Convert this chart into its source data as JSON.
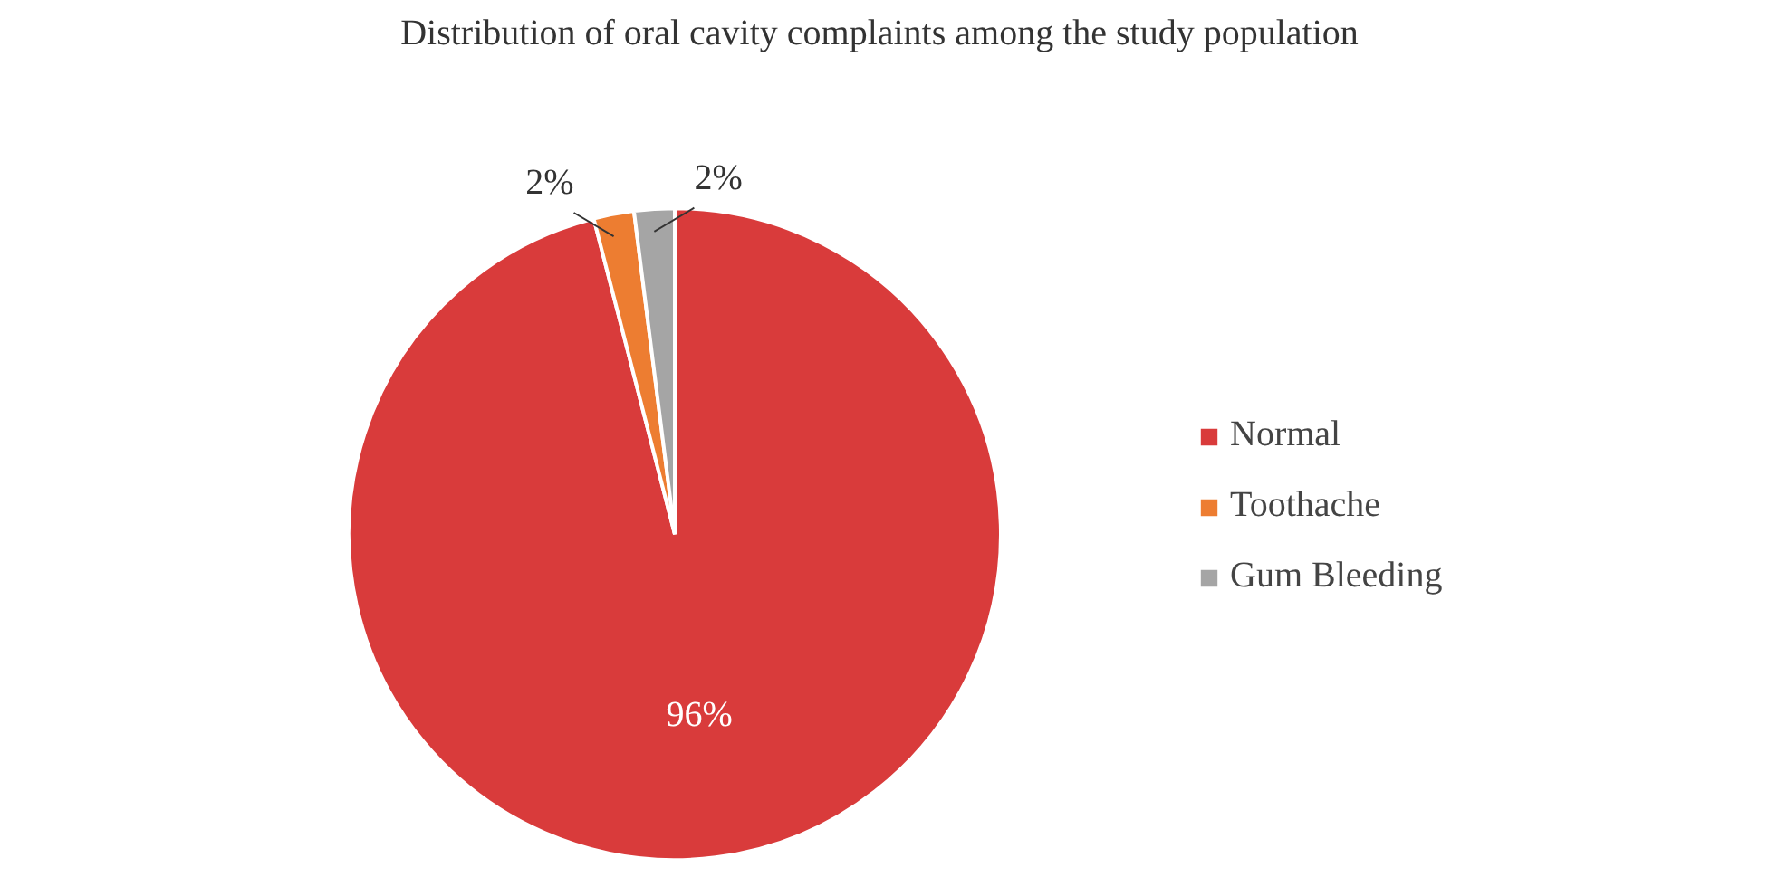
{
  "chart_data": {
    "type": "pie",
    "title": "Distribution of oral cavity complaints among the study population",
    "categories": [
      "Normal",
      "Toothache",
      "Gum Bleeding"
    ],
    "values": [
      96,
      2,
      2
    ],
    "colors": [
      "#d93b3b",
      "#ed7d31",
      "#a5a5a5"
    ],
    "value_labels": [
      "96%",
      "2%",
      "2%"
    ],
    "legend": "right"
  }
}
